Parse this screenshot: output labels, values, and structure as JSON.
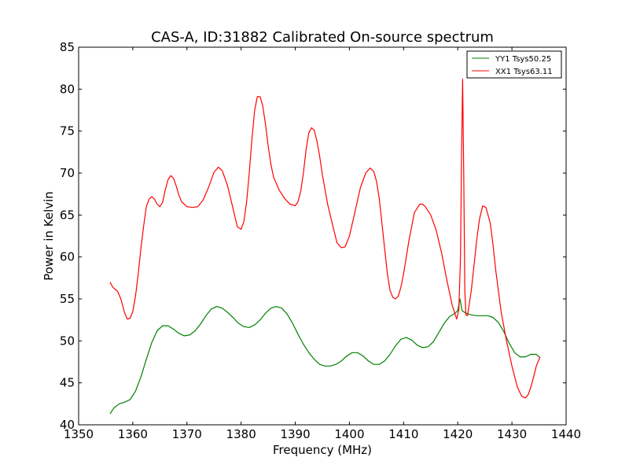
{
  "chart_data": {
    "type": "line",
    "title": "CAS-A, ID:31882 Calibrated On-source spectrum",
    "xlabel": "Frequency (MHz)",
    "ylabel": "Power in Kelvin",
    "xlim": [
      1350,
      1440
    ],
    "ylim": [
      40,
      85
    ],
    "xticks": [
      1350,
      1360,
      1370,
      1380,
      1390,
      1400,
      1410,
      1420,
      1430,
      1440
    ],
    "yticks": [
      40,
      45,
      50,
      55,
      60,
      65,
      70,
      75,
      80,
      85
    ],
    "grid": false,
    "legend_position": "top-right",
    "series": [
      {
        "name": "YY1 Tsys50.25",
        "color": "#008000",
        "points": [
          [
            1355.8,
            41.3
          ],
          [
            1356.5,
            42.0
          ],
          [
            1357.5,
            42.5
          ],
          [
            1358.5,
            42.7
          ],
          [
            1359.5,
            43.0
          ],
          [
            1360.5,
            44.0
          ],
          [
            1361.5,
            45.7
          ],
          [
            1362.5,
            47.8
          ],
          [
            1363.5,
            49.8
          ],
          [
            1364.5,
            51.2
          ],
          [
            1365.5,
            51.8
          ],
          [
            1366.5,
            51.8
          ],
          [
            1367.5,
            51.4
          ],
          [
            1368.5,
            50.9
          ],
          [
            1369.5,
            50.6
          ],
          [
            1370.5,
            50.7
          ],
          [
            1371.5,
            51.2
          ],
          [
            1372.5,
            52.0
          ],
          [
            1373.5,
            53.0
          ],
          [
            1374.5,
            53.8
          ],
          [
            1375.5,
            54.1
          ],
          [
            1376.5,
            53.9
          ],
          [
            1377.5,
            53.4
          ],
          [
            1378.5,
            52.8
          ],
          [
            1379.5,
            52.1
          ],
          [
            1380.5,
            51.7
          ],
          [
            1381.5,
            51.6
          ],
          [
            1382.5,
            51.9
          ],
          [
            1383.5,
            52.5
          ],
          [
            1384.5,
            53.3
          ],
          [
            1385.5,
            53.9
          ],
          [
            1386.5,
            54.1
          ],
          [
            1387.5,
            53.9
          ],
          [
            1388.5,
            53.2
          ],
          [
            1389.5,
            52.1
          ],
          [
            1390.5,
            50.8
          ],
          [
            1391.5,
            49.6
          ],
          [
            1392.5,
            48.6
          ],
          [
            1393.5,
            47.8
          ],
          [
            1394.5,
            47.2
          ],
          [
            1395.5,
            47.0
          ],
          [
            1396.5,
            47.0
          ],
          [
            1397.5,
            47.2
          ],
          [
            1398.5,
            47.6
          ],
          [
            1399.5,
            48.2
          ],
          [
            1400.5,
            48.6
          ],
          [
            1401.5,
            48.6
          ],
          [
            1402.5,
            48.2
          ],
          [
            1403.5,
            47.6
          ],
          [
            1404.5,
            47.2
          ],
          [
            1405.5,
            47.2
          ],
          [
            1406.5,
            47.6
          ],
          [
            1407.5,
            48.4
          ],
          [
            1408.5,
            49.4
          ],
          [
            1409.5,
            50.2
          ],
          [
            1410.5,
            50.4
          ],
          [
            1411.5,
            50.1
          ],
          [
            1412.5,
            49.5
          ],
          [
            1413.5,
            49.2
          ],
          [
            1414.5,
            49.3
          ],
          [
            1415.5,
            49.9
          ],
          [
            1416.5,
            51.0
          ],
          [
            1417.5,
            52.1
          ],
          [
            1418.5,
            52.9
          ],
          [
            1419.5,
            53.3
          ],
          [
            1420.0,
            53.6
          ],
          [
            1420.4,
            55.0
          ],
          [
            1420.8,
            53.6
          ],
          [
            1421.5,
            53.3
          ],
          [
            1422.5,
            53.1
          ],
          [
            1423.5,
            53.0
          ],
          [
            1424.5,
            53.0
          ],
          [
            1425.5,
            53.0
          ],
          [
            1426.5,
            52.8
          ],
          [
            1427.5,
            52.2
          ],
          [
            1428.5,
            51.1
          ],
          [
            1429.5,
            49.7
          ],
          [
            1430.5,
            48.6
          ],
          [
            1431.5,
            48.1
          ],
          [
            1432.5,
            48.1
          ],
          [
            1433.5,
            48.4
          ],
          [
            1434.5,
            48.4
          ],
          [
            1435.2,
            48.0
          ]
        ]
      },
      {
        "name": "XX1 Tsys63.11",
        "color": "#ff0000",
        "points": [
          [
            1355.8,
            57.0
          ],
          [
            1356.3,
            56.4
          ],
          [
            1357.2,
            55.9
          ],
          [
            1357.8,
            55.0
          ],
          [
            1358.5,
            53.3
          ],
          [
            1359.0,
            52.6
          ],
          [
            1359.5,
            52.7
          ],
          [
            1360.0,
            53.5
          ],
          [
            1360.5,
            55.3
          ],
          [
            1361.0,
            58.0
          ],
          [
            1361.5,
            61.0
          ],
          [
            1362.0,
            63.7
          ],
          [
            1362.5,
            66.0
          ],
          [
            1363.0,
            66.9
          ],
          [
            1363.5,
            67.2
          ],
          [
            1364.0,
            66.9
          ],
          [
            1364.5,
            66.3
          ],
          [
            1365.0,
            66.0
          ],
          [
            1365.5,
            66.5
          ],
          [
            1366.0,
            68.0
          ],
          [
            1366.5,
            69.2
          ],
          [
            1367.0,
            69.7
          ],
          [
            1367.5,
            69.4
          ],
          [
            1368.0,
            68.5
          ],
          [
            1368.5,
            67.4
          ],
          [
            1369.0,
            66.6
          ],
          [
            1370.0,
            66.0
          ],
          [
            1371.0,
            65.9
          ],
          [
            1372.0,
            66.0
          ],
          [
            1373.0,
            66.8
          ],
          [
            1374.0,
            68.3
          ],
          [
            1375.0,
            70.1
          ],
          [
            1375.8,
            70.7
          ],
          [
            1376.5,
            70.3
          ],
          [
            1377.5,
            68.5
          ],
          [
            1378.5,
            65.8
          ],
          [
            1379.3,
            63.6
          ],
          [
            1380.0,
            63.3
          ],
          [
            1380.5,
            64.2
          ],
          [
            1381.0,
            66.5
          ],
          [
            1381.5,
            70.0
          ],
          [
            1382.0,
            74.0
          ],
          [
            1382.5,
            77.5
          ],
          [
            1383.0,
            79.1
          ],
          [
            1383.5,
            79.1
          ],
          [
            1384.0,
            78.0
          ],
          [
            1384.5,
            75.8
          ],
          [
            1385.0,
            73.2
          ],
          [
            1385.5,
            71.0
          ],
          [
            1386.0,
            69.5
          ],
          [
            1387.0,
            68.0
          ],
          [
            1388.0,
            67.0
          ],
          [
            1389.0,
            66.3
          ],
          [
            1390.0,
            66.1
          ],
          [
            1390.5,
            66.6
          ],
          [
            1391.0,
            67.8
          ],
          [
            1391.5,
            70.0
          ],
          [
            1392.0,
            72.8
          ],
          [
            1392.5,
            74.8
          ],
          [
            1393.0,
            75.4
          ],
          [
            1393.5,
            75.1
          ],
          [
            1394.0,
            73.8
          ],
          [
            1394.5,
            72.0
          ],
          [
            1395.0,
            69.8
          ],
          [
            1396.0,
            66.2
          ],
          [
            1397.0,
            63.5
          ],
          [
            1397.7,
            61.7
          ],
          [
            1398.5,
            61.1
          ],
          [
            1399.2,
            61.2
          ],
          [
            1400.0,
            62.5
          ],
          [
            1401.0,
            65.3
          ],
          [
            1402.0,
            68.2
          ],
          [
            1403.0,
            70.0
          ],
          [
            1403.8,
            70.6
          ],
          [
            1404.5,
            70.2
          ],
          [
            1405.0,
            69.0
          ],
          [
            1405.5,
            67.0
          ],
          [
            1406.0,
            64.0
          ],
          [
            1406.5,
            61.0
          ],
          [
            1407.0,
            58.0
          ],
          [
            1407.5,
            56.0
          ],
          [
            1408.0,
            55.2
          ],
          [
            1408.5,
            55.0
          ],
          [
            1409.0,
            55.3
          ],
          [
            1409.5,
            56.4
          ],
          [
            1410.0,
            58.0
          ],
          [
            1411.0,
            62.0
          ],
          [
            1412.0,
            65.3
          ],
          [
            1413.0,
            66.3
          ],
          [
            1413.5,
            66.3
          ],
          [
            1414.0,
            66.0
          ],
          [
            1415.0,
            65.0
          ],
          [
            1416.0,
            63.2
          ],
          [
            1417.0,
            60.5
          ],
          [
            1418.0,
            57.2
          ],
          [
            1419.0,
            54.2
          ],
          [
            1419.8,
            52.6
          ],
          [
            1420.2,
            53.7
          ],
          [
            1420.5,
            60.0
          ],
          [
            1420.7,
            72.0
          ],
          [
            1420.9,
            81.2
          ],
          [
            1421.1,
            70.0
          ],
          [
            1421.3,
            56.0
          ],
          [
            1421.5,
            53.1
          ],
          [
            1421.8,
            53.0
          ],
          [
            1422.5,
            56.0
          ],
          [
            1423.0,
            59.0
          ],
          [
            1423.5,
            62.0
          ],
          [
            1424.0,
            64.5
          ],
          [
            1424.6,
            66.1
          ],
          [
            1425.2,
            65.9
          ],
          [
            1426.0,
            64.0
          ],
          [
            1426.5,
            61.5
          ],
          [
            1427.0,
            58.5
          ],
          [
            1428.0,
            53.5
          ],
          [
            1429.0,
            50.0
          ],
          [
            1430.0,
            47.0
          ],
          [
            1431.0,
            44.5
          ],
          [
            1431.8,
            43.4
          ],
          [
            1432.5,
            43.2
          ],
          [
            1433.0,
            43.6
          ],
          [
            1433.5,
            44.5
          ],
          [
            1434.0,
            45.7
          ],
          [
            1434.5,
            47.0
          ],
          [
            1435.2,
            48.1
          ]
        ]
      }
    ]
  }
}
